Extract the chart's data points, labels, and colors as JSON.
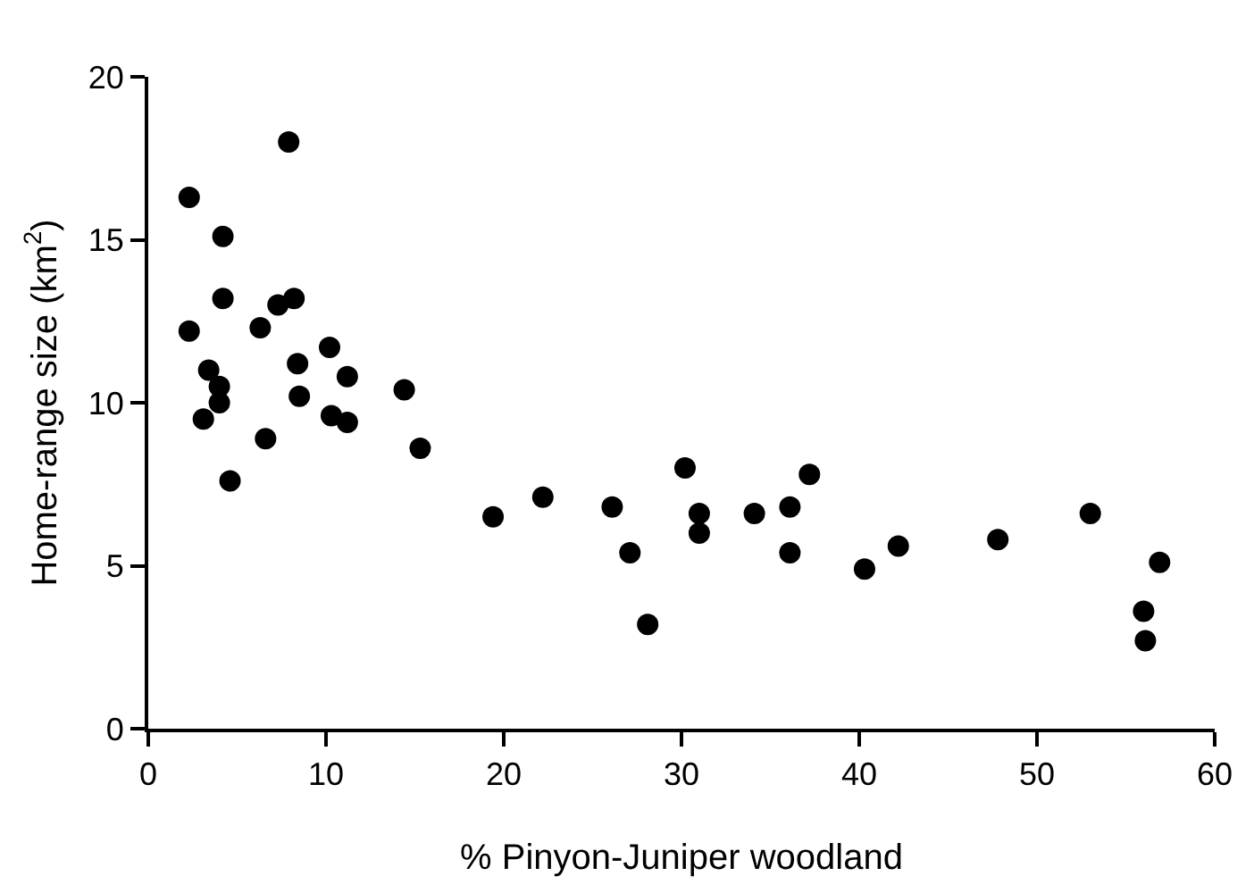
{
  "chart_data": {
    "type": "scatter",
    "xlabel": "% Pinyon-Juniper woodland",
    "ylabel": "Home-range size (km$^{2}$)",
    "x": [
      2.3,
      2.3,
      3.1,
      3.4,
      4.0,
      4.0,
      4.2,
      4.2,
      4.6,
      6.3,
      6.6,
      7.3,
      7.9,
      8.2,
      8.4,
      8.5,
      10.2,
      10.3,
      11.2,
      11.2,
      14.4,
      15.3,
      19.4,
      22.2,
      26.1,
      27.1,
      28.1,
      30.2,
      31.0,
      31.0,
      34.1,
      36.1,
      36.1,
      37.2,
      40.3,
      42.2,
      47.8,
      53.0,
      56.0,
      56.1,
      56.9
    ],
    "series": [
      {
        "color": "#000000",
        "values": [
          16.3,
          12.2,
          9.5,
          11.0,
          10.5,
          10.0,
          15.1,
          13.2,
          7.6,
          12.3,
          8.9,
          13.0,
          18.0,
          13.2,
          11.2,
          10.2,
          11.7,
          9.6,
          10.8,
          9.4,
          10.4,
          8.6,
          6.5,
          7.1,
          6.8,
          5.4,
          3.2,
          8.0,
          6.6,
          6.0,
          6.6,
          6.8,
          5.4,
          7.8,
          4.9,
          5.6,
          5.8,
          6.6,
          3.6,
          2.7,
          5.1
        ]
      }
    ],
    "xlim": [
      0,
      60
    ],
    "xticks": [
      0,
      10,
      20,
      30,
      40,
      50,
      60
    ],
    "ylim": [
      0,
      20
    ],
    "yticks": [
      0,
      5,
      10,
      15,
      20
    ],
    "marker": "circle"
  }
}
